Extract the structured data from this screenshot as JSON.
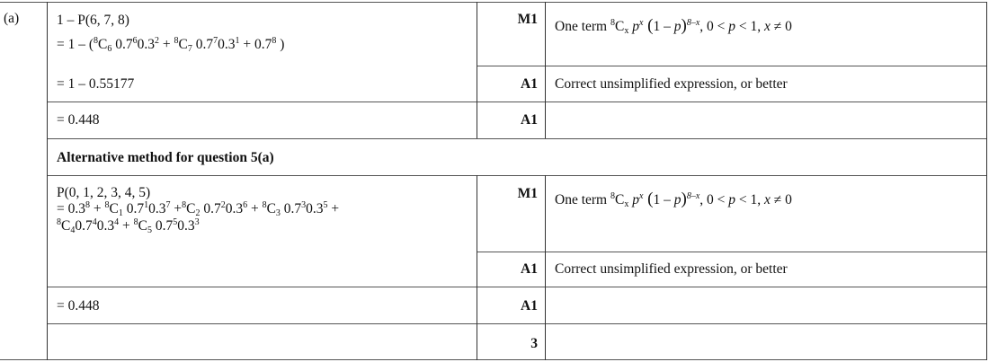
{
  "part_label": "(a)",
  "main_method": {
    "working_lines": [
      [
        [
          "1 – P(6, 7, 8)",
          "n"
        ]
      ],
      [
        [
          "= 1 – (",
          "n"
        ],
        [
          "8",
          "sup"
        ],
        [
          "C",
          "n"
        ],
        [
          "6",
          "sub"
        ],
        [
          " 0.7",
          "n"
        ],
        [
          "6",
          "sup"
        ],
        [
          "0.3",
          "n"
        ],
        [
          "2",
          "sup"
        ],
        [
          " + ",
          "n"
        ],
        [
          "8",
          "sup"
        ],
        [
          "C",
          "n"
        ],
        [
          "7",
          "sub"
        ],
        [
          " 0.7",
          "n"
        ],
        [
          "7",
          "sup"
        ],
        [
          "0.3",
          "n"
        ],
        [
          "1",
          "sup"
        ],
        [
          " + 0.7",
          "n"
        ],
        [
          "8",
          "sup"
        ],
        [
          " )",
          "n"
        ]
      ]
    ],
    "step2": "= 1 – 0.55177",
    "step3": "= 0.448",
    "marks": [
      "M1",
      "A1",
      "A1"
    ],
    "comments": {
      "m1": [
        [
          "One term ",
          "n"
        ],
        [
          "8",
          "sup"
        ],
        [
          "C",
          "n"
        ],
        [
          "x",
          "sub"
        ],
        [
          "  p",
          "i"
        ],
        [
          "x",
          "isup"
        ],
        [
          " (",
          "big"
        ],
        [
          "1 – ",
          "n"
        ],
        [
          "p",
          "i"
        ],
        [
          ")",
          "big"
        ],
        [
          "8–x",
          "isup"
        ],
        [
          ",   0 < ",
          "n"
        ],
        [
          "p",
          "i"
        ],
        [
          " < 1,  ",
          "n"
        ],
        [
          "x",
          "i"
        ],
        [
          " ≠ 0",
          "n"
        ]
      ],
      "a1": "Correct unsimplified expression, or better"
    }
  },
  "alternative": {
    "heading": "Alternative method for question 5(a)",
    "working_lines": [
      [
        [
          "P(0, 1, 2, 3, 4, 5)",
          "n"
        ]
      ],
      [
        [
          "= 0.3",
          "n"
        ],
        [
          "8",
          "sup"
        ],
        [
          " + ",
          "n"
        ],
        [
          "8",
          "sup"
        ],
        [
          "C",
          "n"
        ],
        [
          "1",
          "sub"
        ],
        [
          " 0.7",
          "n"
        ],
        [
          "1",
          "sup"
        ],
        [
          "0.3",
          "n"
        ],
        [
          "7",
          "sup"
        ],
        [
          " +",
          "n"
        ],
        [
          "8",
          "sup"
        ],
        [
          "C",
          "n"
        ],
        [
          "2",
          "sub"
        ],
        [
          " 0.7",
          "n"
        ],
        [
          "2",
          "sup"
        ],
        [
          "0.3",
          "n"
        ],
        [
          "6",
          "sup"
        ],
        [
          " + ",
          "n"
        ],
        [
          "8",
          "sup"
        ],
        [
          "C",
          "n"
        ],
        [
          "3",
          "sub"
        ],
        [
          " 0.7",
          "n"
        ],
        [
          "3",
          "sup"
        ],
        [
          "0.3",
          "n"
        ],
        [
          "5",
          "sup"
        ],
        [
          " +",
          "n"
        ]
      ],
      [
        [
          "8",
          "sup"
        ],
        [
          "C",
          "n"
        ],
        [
          "4",
          "sub"
        ],
        [
          "0.7",
          "n"
        ],
        [
          "4",
          "sup"
        ],
        [
          "0.3",
          "n"
        ],
        [
          "4",
          "sup"
        ],
        [
          " + ",
          "n"
        ],
        [
          "8",
          "sup"
        ],
        [
          "C",
          "n"
        ],
        [
          "5",
          "sub"
        ],
        [
          " 0.7",
          "n"
        ],
        [
          "5",
          "sup"
        ],
        [
          "0.3",
          "n"
        ],
        [
          "3",
          "sup"
        ]
      ]
    ],
    "step3": "= 0.448",
    "marks": [
      "M1",
      "A1",
      "A1"
    ],
    "comments": {
      "m1": [
        [
          "One term ",
          "n"
        ],
        [
          "8",
          "sup"
        ],
        [
          "C",
          "n"
        ],
        [
          "x",
          "sub"
        ],
        [
          "  p",
          "i"
        ],
        [
          "x",
          "isup"
        ],
        [
          " (",
          "big"
        ],
        [
          "1 – ",
          "n"
        ],
        [
          "p",
          "i"
        ],
        [
          ")",
          "big"
        ],
        [
          "8–x",
          "isup"
        ],
        [
          ",   0 < ",
          "n"
        ],
        [
          "p",
          "i"
        ],
        [
          " < 1,  ",
          "n"
        ],
        [
          "x",
          "i"
        ],
        [
          " ≠ 0",
          "n"
        ]
      ],
      "a1": "Correct unsimplified expression, or better"
    }
  },
  "total_marks": "3"
}
